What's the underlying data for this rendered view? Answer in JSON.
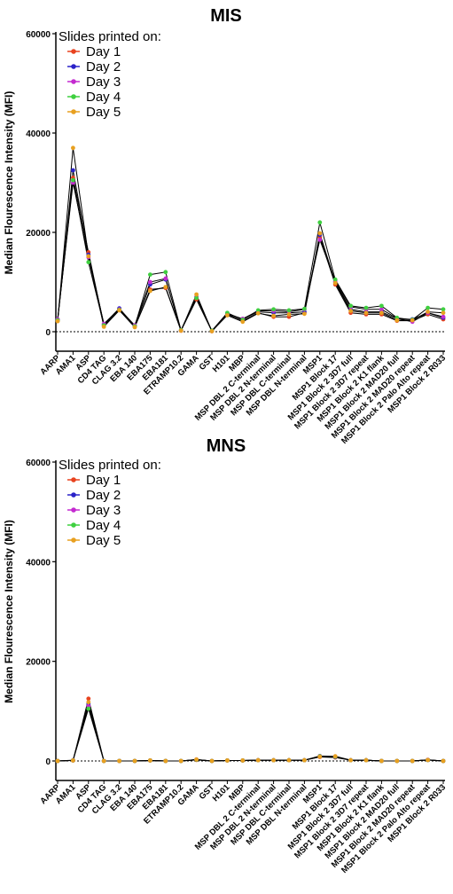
{
  "legend_title": "Slides printed on:",
  "ylabel": "Median Flourescence Intensity (MFI)",
  "categories": [
    "AARP",
    "AMA1",
    "ASP",
    "CD4 TAG",
    "CLAG 3.2",
    "EBA 140",
    "EBA175",
    "EBA181",
    "ETRAMP10.2",
    "GAMA",
    "GST",
    "H101",
    "MBP",
    "MSP DBL 2 C-terminal",
    "MSP DBL 2 N-terminal",
    "MSP DBL C-terminal",
    "MSP DBL N-terminal",
    "MSP1",
    "MSP1 Block 17",
    "MSP1 Block 2 3D7 full",
    "MSP1 Block 2 3D7 repeat",
    "MSP1 Block 2 K1 flank",
    "MSP1 Block 2 MAD20 full",
    "MSP1 Block 2 MAD20 repeat",
    "MSP1 Block 2 Palo Alto repeat",
    "MSP1 Block 2 R033"
  ],
  "series_styles": [
    {
      "name": "Day 1",
      "color": "#e8431f"
    },
    {
      "name": "Day 2",
      "color": "#2a22c8"
    },
    {
      "name": "Day 3",
      "color": "#c42ad0"
    },
    {
      "name": "Day 4",
      "color": "#3fd040"
    },
    {
      "name": "Day 5",
      "color": "#e8a020"
    }
  ],
  "chart_data": [
    {
      "type": "line",
      "title": "MIS",
      "ylabel": "Median Flourescence Intensity (MFI)",
      "ylim": [
        0,
        60000
      ],
      "yticks": [
        0,
        20000,
        40000,
        60000
      ],
      "ytick_labels": [
        "0",
        "20000",
        "40000",
        "60000"
      ],
      "reference_line": 0,
      "series": [
        {
          "name": "Day 1",
          "values": [
            2200,
            31000,
            16000,
            1200,
            4600,
            1000,
            8500,
            8800,
            200,
            6500,
            100,
            3500,
            2200,
            3800,
            3000,
            3000,
            3800,
            19000,
            9500,
            3800,
            3500,
            3500,
            2200,
            2200,
            3500,
            2500
          ]
        },
        {
          "name": "Day 2",
          "values": [
            2400,
            32500,
            15500,
            1500,
            4700,
            1200,
            9500,
            10500,
            300,
            7000,
            150,
            3700,
            2500,
            4000,
            3800,
            3800,
            4000,
            19500,
            10000,
            4500,
            4000,
            4000,
            2600,
            2500,
            3800,
            2800
          ]
        },
        {
          "name": "Day 3",
          "values": [
            2500,
            30000,
            15000,
            1600,
            4500,
            1300,
            10000,
            10700,
            250,
            7000,
            120,
            3600,
            2600,
            4200,
            4200,
            4000,
            4500,
            18500,
            10200,
            5000,
            4500,
            4500,
            2700,
            2000,
            3800,
            3000
          ]
        },
        {
          "name": "Day 4",
          "values": [
            2300,
            30500,
            14000,
            1300,
            4400,
            1100,
            11500,
            12000,
            300,
            6800,
            200,
            3800,
            2400,
            4300,
            4500,
            4300,
            4600,
            22000,
            10500,
            5200,
            4800,
            5200,
            2800,
            2400,
            4800,
            4500
          ]
        },
        {
          "name": "Day 5",
          "values": [
            2100,
            37000,
            15200,
            1000,
            4300,
            900,
            8200,
            9000,
            220,
            7500,
            100,
            3300,
            2000,
            3700,
            3200,
            3500,
            3600,
            19800,
            9800,
            4200,
            3800,
            3800,
            2300,
            2300,
            4000,
            3800
          ]
        }
      ]
    },
    {
      "type": "line",
      "title": "MNS",
      "ylabel": "Median Flourescence Intensity (MFI)",
      "ylim": [
        0,
        60000
      ],
      "yticks": [
        0,
        20000,
        40000,
        60000
      ],
      "ytick_labels": [
        "0",
        "20000",
        "40000",
        "60000"
      ],
      "reference_line": 0,
      "series": [
        {
          "name": "Day 1",
          "values": [
            0,
            100,
            12500,
            0,
            0,
            0,
            100,
            0,
            0,
            200,
            0,
            100,
            100,
            150,
            150,
            150,
            150,
            800,
            700,
            150,
            150,
            0,
            0,
            0,
            200,
            0
          ]
        },
        {
          "name": "Day 2",
          "values": [
            0,
            100,
            11500,
            0,
            0,
            0,
            100,
            0,
            0,
            250,
            0,
            100,
            100,
            150,
            150,
            150,
            150,
            900,
            800,
            150,
            150,
            0,
            0,
            0,
            200,
            0
          ]
        },
        {
          "name": "Day 3",
          "values": [
            0,
            150,
            11000,
            0,
            0,
            0,
            100,
            0,
            0,
            300,
            0,
            100,
            100,
            150,
            150,
            150,
            150,
            1000,
            900,
            150,
            150,
            0,
            0,
            0,
            250,
            0
          ]
        },
        {
          "name": "Day 4",
          "values": [
            0,
            120,
            10500,
            0,
            0,
            0,
            100,
            0,
            0,
            250,
            0,
            100,
            100,
            150,
            150,
            150,
            150,
            950,
            850,
            150,
            150,
            0,
            0,
            0,
            200,
            0
          ]
        },
        {
          "name": "Day 5",
          "values": [
            0,
            100,
            11800,
            0,
            0,
            0,
            100,
            0,
            0,
            300,
            0,
            100,
            100,
            150,
            150,
            150,
            150,
            850,
            950,
            150,
            150,
            0,
            0,
            0,
            200,
            0
          ]
        }
      ]
    }
  ]
}
